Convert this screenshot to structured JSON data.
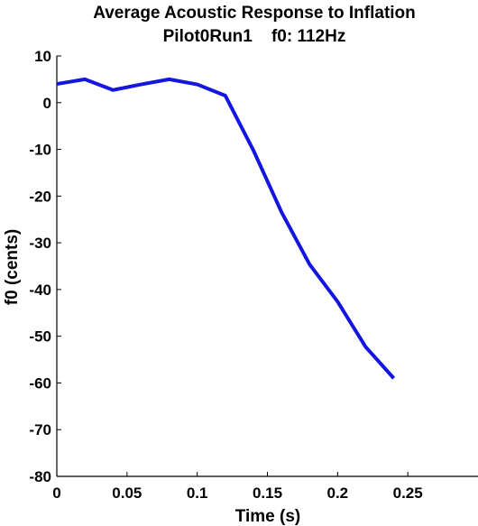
{
  "chart_data": {
    "type": "line",
    "title": "Average Acoustic Response to Inflation",
    "subtitle": "Pilot0Run1    f0: 112Hz",
    "xlabel": "Time (s)",
    "ylabel": "f0 (cents)",
    "xlim": [
      0,
      0.3
    ],
    "ylim": [
      -80,
      10
    ],
    "xticks": [
      0,
      0.05,
      0.1,
      0.15,
      0.2,
      0.25
    ],
    "xtick_labels": [
      "0",
      "0.05",
      "0.1",
      "0.15",
      "0.2",
      "0.25"
    ],
    "yticks": [
      10,
      0,
      -10,
      -20,
      -30,
      -40,
      -50,
      -60,
      -70,
      -80
    ],
    "ytick_labels": [
      "10",
      "0",
      "-10",
      "-20",
      "-30",
      "-40",
      "-50",
      "-60",
      "-70",
      "-80"
    ],
    "grid": false,
    "legend": "none",
    "series": [
      {
        "color": "#1515e0",
        "x": [
          0,
          0.02,
          0.04,
          0.06,
          0.08,
          0.1,
          0.12,
          0.14,
          0.16,
          0.18,
          0.2,
          0.22,
          0.24
        ],
        "y": [
          4,
          5,
          2.7,
          3.9,
          5,
          3.9,
          1.5,
          -10.2,
          -23.4,
          -34.6,
          -42.6,
          -52.3,
          -59
        ]
      }
    ]
  }
}
